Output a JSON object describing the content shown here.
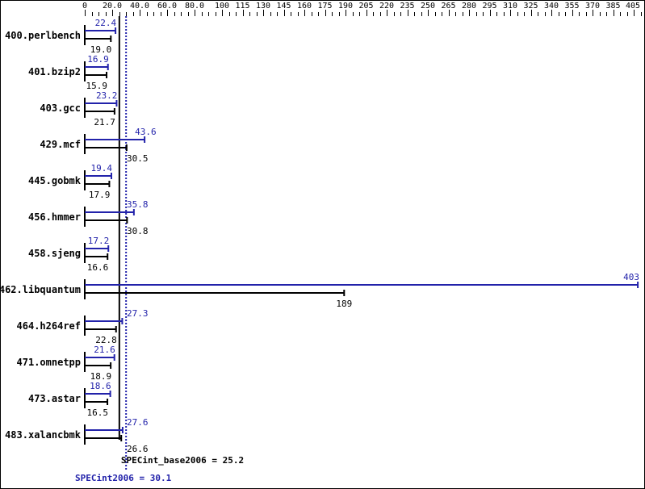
{
  "chart_data": {
    "type": "bar",
    "orientation": "horizontal",
    "x_tick_labels": [
      "0",
      "20.0",
      "40.0",
      "60.0",
      "80.0",
      "100",
      "115",
      "130",
      "145",
      "160",
      "175",
      "190",
      "205",
      "220",
      "235",
      "250",
      "265",
      "280",
      "295",
      "310",
      "325",
      "340",
      "355",
      "370",
      "385",
      "405"
    ],
    "xlim": [
      0,
      405
    ],
    "categories": [
      "400.perlbench",
      "401.bzip2",
      "403.gcc",
      "429.mcf",
      "445.gobmk",
      "456.hmmer",
      "458.sjeng",
      "462.libquantum",
      "464.h264ref",
      "471.omnetpp",
      "473.astar",
      "483.xalancbmk"
    ],
    "series": [
      {
        "key": "peak",
        "color": "#2222aa",
        "values": [
          22.4,
          16.9,
          23.2,
          43.6,
          19.4,
          35.8,
          17.2,
          403,
          27.3,
          21.6,
          18.6,
          27.6
        ],
        "labels": [
          "22.4",
          "16.9",
          "23.2",
          "43.6",
          "19.4",
          "35.8",
          "17.2",
          "403",
          "27.3",
          "21.6",
          "18.6",
          "27.6"
        ]
      },
      {
        "key": "base",
        "color": "#000000",
        "values": [
          19.0,
          15.9,
          21.7,
          30.5,
          17.9,
          30.8,
          16.6,
          189,
          22.8,
          18.9,
          16.5,
          26.6
        ],
        "labels": [
          "19.0",
          "15.9",
          "21.7",
          "30.5",
          "17.9",
          "30.8",
          "16.6",
          "189",
          "22.8",
          "18.9",
          "16.5",
          "26.6"
        ]
      }
    ],
    "reference_lines": [
      {
        "key": "base",
        "value": 25.2,
        "label": "SPECint_base2006 = 25.2",
        "color": "#000000",
        "style": "solid"
      },
      {
        "key": "peak",
        "value": 30.1,
        "label": "SPECint2006 = 30.1",
        "color": "#2222aa",
        "style": "dotted"
      }
    ],
    "grid": false
  }
}
